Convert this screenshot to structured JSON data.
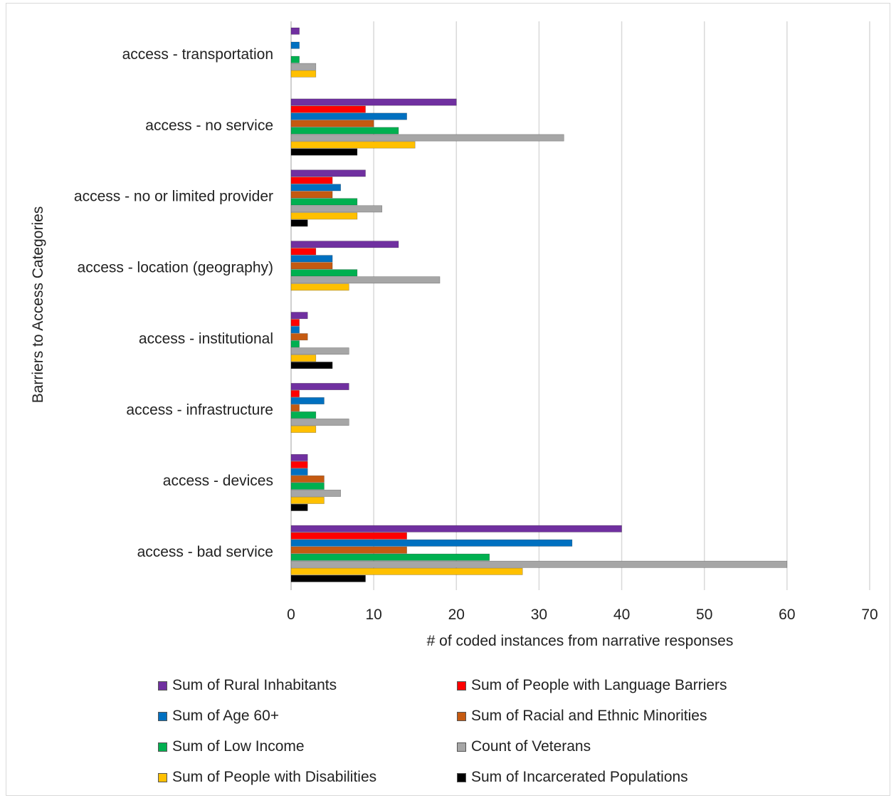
{
  "chart_data": {
    "type": "bar",
    "orientation": "horizontal",
    "title": "",
    "xlabel": "# of coded instances from narrative responses",
    "ylabel": "Barriers to Access Categories",
    "xlim": [
      0,
      70
    ],
    "xticks": [
      0,
      10,
      20,
      30,
      40,
      50,
      60,
      70
    ],
    "grid": true,
    "legend_position": "bottom",
    "categories": [
      "access - transportation",
      "access - no service",
      "access - no or limited provider",
      "access - location (geography)",
      "access - institutional",
      "access - infrastructure",
      "access - devices",
      "access - bad service"
    ],
    "series": [
      {
        "name": "Sum of Rural Inhabitants",
        "color": "#7030a0",
        "values": [
          1,
          20,
          9,
          13,
          2,
          7,
          2,
          40
        ]
      },
      {
        "name": "Sum of People with Language Barriers",
        "color": "#ff0000",
        "values": [
          0,
          9,
          5,
          3,
          1,
          1,
          2,
          14
        ]
      },
      {
        "name": "Sum of Age 60+",
        "color": "#0070c0",
        "values": [
          1,
          14,
          6,
          5,
          1,
          4,
          2,
          34
        ]
      },
      {
        "name": "Sum of Racial and Ethnic Minorities",
        "color": "#c55a11",
        "values": [
          0,
          10,
          5,
          5,
          2,
          1,
          4,
          14
        ]
      },
      {
        "name": "Sum of Low Income",
        "color": "#00b050",
        "values": [
          1,
          13,
          8,
          8,
          1,
          3,
          4,
          24
        ]
      },
      {
        "name": "Count of Veterans",
        "color": "#a6a6a6",
        "values": [
          3,
          33,
          11,
          18,
          7,
          7,
          6,
          60
        ]
      },
      {
        "name": "Sum of People with Disabilities",
        "color": "#ffc000",
        "values": [
          3,
          15,
          8,
          7,
          3,
          3,
          4,
          28
        ]
      },
      {
        "name": "Sum of Incarcerated Populations",
        "color": "#000000",
        "values": [
          0,
          8,
          2,
          0,
          5,
          0,
          2,
          9
        ]
      }
    ]
  }
}
